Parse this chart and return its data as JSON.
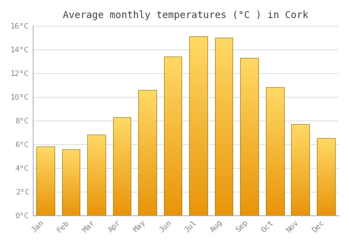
{
  "title": "Average monthly temperatures (°C ) in Cork",
  "months": [
    "Jan",
    "Feb",
    "Mar",
    "Apr",
    "May",
    "Jun",
    "Jul",
    "Aug",
    "Sep",
    "Oct",
    "Nov",
    "Dec"
  ],
  "temperatures": [
    5.8,
    5.6,
    6.8,
    8.3,
    10.6,
    13.4,
    15.1,
    15.0,
    13.3,
    10.8,
    7.7,
    6.5
  ],
  "bar_color_top": "#FFD966",
  "bar_color_bottom": "#E8940A",
  "bar_edge_color": "#888844",
  "ylim": [
    0,
    16
  ],
  "yticks": [
    0,
    2,
    4,
    6,
    8,
    10,
    12,
    14,
    16
  ],
  "background_color": "#ffffff",
  "grid_color": "#dddddd",
  "title_fontsize": 10,
  "tick_fontsize": 8,
  "tick_color": "#888888",
  "bar_width": 0.7
}
